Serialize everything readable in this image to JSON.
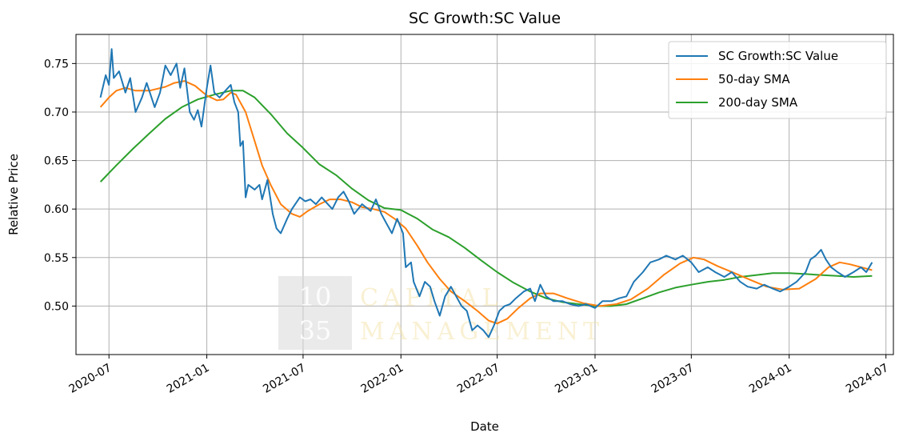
{
  "chart_data": {
    "type": "line",
    "title": "SC Growth:SC Value",
    "xlabel": "Date",
    "ylabel": "Relative Price",
    "xlim": [
      "2020-04-30",
      "2024-07-15"
    ],
    "ylim": [
      0.45,
      0.78
    ],
    "x_ticks": [
      "2020-07",
      "2021-01",
      "2021-07",
      "2022-01",
      "2022-07",
      "2023-01",
      "2023-07",
      "2024-01",
      "2024-07"
    ],
    "y_ticks": [
      0.5,
      0.55,
      0.6,
      0.65,
      0.7,
      0.75
    ],
    "grid": true,
    "legend_position": "top-right",
    "watermark": {
      "logo_top": "10",
      "logo_bottom": "35",
      "line1": "CAPITAL",
      "line2": "MANAGEMENT"
    },
    "series": [
      {
        "name": "SC Growth:SC Value",
        "color": "#1f77b4",
        "points": [
          [
            "2020-06-15",
            0.715
          ],
          [
            "2020-06-25",
            0.738
          ],
          [
            "2020-07-01",
            0.728
          ],
          [
            "2020-07-06",
            0.765
          ],
          [
            "2020-07-10",
            0.735
          ],
          [
            "2020-07-20",
            0.742
          ],
          [
            "2020-08-01",
            0.72
          ],
          [
            "2020-08-10",
            0.735
          ],
          [
            "2020-08-20",
            0.7
          ],
          [
            "2020-09-01",
            0.715
          ],
          [
            "2020-09-10",
            0.73
          ],
          [
            "2020-09-25",
            0.705
          ],
          [
            "2020-10-05",
            0.72
          ],
          [
            "2020-10-15",
            0.748
          ],
          [
            "2020-10-25",
            0.738
          ],
          [
            "2020-11-05",
            0.75
          ],
          [
            "2020-11-12",
            0.725
          ],
          [
            "2020-11-20",
            0.745
          ],
          [
            "2020-11-30",
            0.7
          ],
          [
            "2020-12-08",
            0.692
          ],
          [
            "2020-12-15",
            0.702
          ],
          [
            "2020-12-22",
            0.685
          ],
          [
            "2021-01-01",
            0.725
          ],
          [
            "2021-01-08",
            0.748
          ],
          [
            "2021-01-15",
            0.72
          ],
          [
            "2021-01-25",
            0.715
          ],
          [
            "2021-02-05",
            0.722
          ],
          [
            "2021-02-15",
            0.728
          ],
          [
            "2021-02-22",
            0.71
          ],
          [
            "2021-03-01",
            0.7
          ],
          [
            "2021-03-05",
            0.665
          ],
          [
            "2021-03-10",
            0.67
          ],
          [
            "2021-03-15",
            0.612
          ],
          [
            "2021-03-20",
            0.625
          ],
          [
            "2021-04-01",
            0.62
          ],
          [
            "2021-04-10",
            0.625
          ],
          [
            "2021-04-15",
            0.61
          ],
          [
            "2021-04-25",
            0.63
          ],
          [
            "2021-05-05",
            0.595
          ],
          [
            "2021-05-12",
            0.58
          ],
          [
            "2021-05-20",
            0.575
          ],
          [
            "2021-06-01",
            0.59
          ],
          [
            "2021-06-10",
            0.6
          ],
          [
            "2021-06-25",
            0.612
          ],
          [
            "2021-07-05",
            0.608
          ],
          [
            "2021-07-15",
            0.61
          ],
          [
            "2021-07-25",
            0.605
          ],
          [
            "2021-08-05",
            0.612
          ],
          [
            "2021-08-15",
            0.606
          ],
          [
            "2021-08-25",
            0.6
          ],
          [
            "2021-09-05",
            0.612
          ],
          [
            "2021-09-15",
            0.618
          ],
          [
            "2021-09-25",
            0.608
          ],
          [
            "2021-10-05",
            0.595
          ],
          [
            "2021-10-20",
            0.605
          ],
          [
            "2021-11-05",
            0.598
          ],
          [
            "2021-11-15",
            0.61
          ],
          [
            "2021-11-25",
            0.595
          ],
          [
            "2021-12-05",
            0.585
          ],
          [
            "2021-12-15",
            0.575
          ],
          [
            "2021-12-25",
            0.59
          ],
          [
            "2022-01-05",
            0.575
          ],
          [
            "2022-01-10",
            0.54
          ],
          [
            "2022-01-20",
            0.545
          ],
          [
            "2022-01-25",
            0.525
          ],
          [
            "2022-02-05",
            0.51
          ],
          [
            "2022-02-15",
            0.525
          ],
          [
            "2022-02-25",
            0.52
          ],
          [
            "2022-03-05",
            0.505
          ],
          [
            "2022-03-15",
            0.49
          ],
          [
            "2022-03-25",
            0.51
          ],
          [
            "2022-04-05",
            0.52
          ],
          [
            "2022-04-15",
            0.51
          ],
          [
            "2022-04-25",
            0.5
          ],
          [
            "2022-05-05",
            0.495
          ],
          [
            "2022-05-15",
            0.475
          ],
          [
            "2022-05-25",
            0.48
          ],
          [
            "2022-06-05",
            0.475
          ],
          [
            "2022-06-15",
            0.468
          ],
          [
            "2022-06-25",
            0.48
          ],
          [
            "2022-07-05",
            0.495
          ],
          [
            "2022-07-15",
            0.5
          ],
          [
            "2022-07-25",
            0.502
          ],
          [
            "2022-08-05",
            0.508
          ],
          [
            "2022-08-20",
            0.515
          ],
          [
            "2022-09-01",
            0.518
          ],
          [
            "2022-09-10",
            0.505
          ],
          [
            "2022-09-20",
            0.522
          ],
          [
            "2022-10-01",
            0.51
          ],
          [
            "2022-10-15",
            0.505
          ],
          [
            "2022-11-01",
            0.505
          ],
          [
            "2022-11-15",
            0.502
          ],
          [
            "2022-12-01",
            0.5
          ],
          [
            "2022-12-15",
            0.502
          ],
          [
            "2023-01-01",
            0.498
          ],
          [
            "2023-01-15",
            0.505
          ],
          [
            "2023-02-01",
            0.505
          ],
          [
            "2023-02-15",
            0.508
          ],
          [
            "2023-03-01",
            0.51
          ],
          [
            "2023-03-15",
            0.525
          ],
          [
            "2023-04-01",
            0.535
          ],
          [
            "2023-04-15",
            0.545
          ],
          [
            "2023-05-01",
            0.548
          ],
          [
            "2023-05-15",
            0.552
          ],
          [
            "2023-06-01",
            0.548
          ],
          [
            "2023-06-15",
            0.552
          ],
          [
            "2023-07-01",
            0.545
          ],
          [
            "2023-07-15",
            0.535
          ],
          [
            "2023-08-01",
            0.54
          ],
          [
            "2023-08-15",
            0.535
          ],
          [
            "2023-09-01",
            0.53
          ],
          [
            "2023-09-15",
            0.535
          ],
          [
            "2023-10-01",
            0.525
          ],
          [
            "2023-10-15",
            0.52
          ],
          [
            "2023-11-01",
            0.518
          ],
          [
            "2023-11-15",
            0.522
          ],
          [
            "2023-12-01",
            0.518
          ],
          [
            "2023-12-15",
            0.515
          ],
          [
            "2024-01-01",
            0.52
          ],
          [
            "2024-01-15",
            0.525
          ],
          [
            "2024-02-01",
            0.535
          ],
          [
            "2024-02-10",
            0.548
          ],
          [
            "2024-02-20",
            0.552
          ],
          [
            "2024-03-01",
            0.558
          ],
          [
            "2024-03-10",
            0.548
          ],
          [
            "2024-03-20",
            0.54
          ],
          [
            "2024-04-01",
            0.535
          ],
          [
            "2024-04-15",
            0.53
          ],
          [
            "2024-05-01",
            0.535
          ],
          [
            "2024-05-15",
            0.54
          ],
          [
            "2024-05-25",
            0.535
          ],
          [
            "2024-06-05",
            0.545
          ]
        ]
      },
      {
        "name": "50-day SMA",
        "color": "#ff7f0e",
        "points": [
          [
            "2020-06-15",
            0.705
          ],
          [
            "2020-07-01",
            0.715
          ],
          [
            "2020-07-15",
            0.722
          ],
          [
            "2020-08-01",
            0.725
          ],
          [
            "2020-08-20",
            0.722
          ],
          [
            "2020-09-15",
            0.722
          ],
          [
            "2020-10-15",
            0.726
          ],
          [
            "2020-11-01",
            0.73
          ],
          [
            "2020-11-20",
            0.732
          ],
          [
            "2020-12-10",
            0.727
          ],
          [
            "2021-01-01",
            0.717
          ],
          [
            "2021-01-20",
            0.712
          ],
          [
            "2021-02-01",
            0.713
          ],
          [
            "2021-02-15",
            0.72
          ],
          [
            "2021-02-25",
            0.718
          ],
          [
            "2021-03-15",
            0.7
          ],
          [
            "2021-04-01",
            0.67
          ],
          [
            "2021-04-15",
            0.645
          ],
          [
            "2021-05-01",
            0.625
          ],
          [
            "2021-05-20",
            0.605
          ],
          [
            "2021-06-10",
            0.595
          ],
          [
            "2021-06-25",
            0.592
          ],
          [
            "2021-07-10",
            0.598
          ],
          [
            "2021-08-01",
            0.605
          ],
          [
            "2021-08-20",
            0.61
          ],
          [
            "2021-09-10",
            0.61
          ],
          [
            "2021-10-01",
            0.607
          ],
          [
            "2021-10-20",
            0.602
          ],
          [
            "2021-11-10",
            0.6
          ],
          [
            "2021-12-01",
            0.597
          ],
          [
            "2021-12-20",
            0.59
          ],
          [
            "2022-01-10",
            0.58
          ],
          [
            "2022-02-01",
            0.562
          ],
          [
            "2022-02-20",
            0.545
          ],
          [
            "2022-03-15",
            0.528
          ],
          [
            "2022-04-05",
            0.515
          ],
          [
            "2022-05-01",
            0.505
          ],
          [
            "2022-05-25",
            0.495
          ],
          [
            "2022-06-15",
            0.485
          ],
          [
            "2022-07-01",
            0.482
          ],
          [
            "2022-07-20",
            0.487
          ],
          [
            "2022-08-10",
            0.498
          ],
          [
            "2022-09-01",
            0.508
          ],
          [
            "2022-09-20",
            0.513
          ],
          [
            "2022-10-15",
            0.513
          ],
          [
            "2022-11-10",
            0.508
          ],
          [
            "2022-12-10",
            0.503
          ],
          [
            "2023-01-10",
            0.5
          ],
          [
            "2023-02-10",
            0.502
          ],
          [
            "2023-03-10",
            0.507
          ],
          [
            "2023-04-10",
            0.518
          ],
          [
            "2023-05-10",
            0.532
          ],
          [
            "2023-06-10",
            0.544
          ],
          [
            "2023-07-05",
            0.55
          ],
          [
            "2023-07-25",
            0.548
          ],
          [
            "2023-08-20",
            0.541
          ],
          [
            "2023-09-20",
            0.534
          ],
          [
            "2023-10-20",
            0.527
          ],
          [
            "2023-11-20",
            0.52
          ],
          [
            "2023-12-20",
            0.517
          ],
          [
            "2024-01-20",
            0.518
          ],
          [
            "2024-02-20",
            0.528
          ],
          [
            "2024-03-15",
            0.54
          ],
          [
            "2024-04-05",
            0.545
          ],
          [
            "2024-04-25",
            0.543
          ],
          [
            "2024-05-15",
            0.54
          ],
          [
            "2024-06-05",
            0.537
          ]
        ]
      },
      {
        "name": "200-day SMA",
        "color": "#2ca02c",
        "points": [
          [
            "2020-06-15",
            0.628
          ],
          [
            "2020-07-15",
            0.645
          ],
          [
            "2020-08-15",
            0.662
          ],
          [
            "2020-09-15",
            0.678
          ],
          [
            "2020-10-15",
            0.693
          ],
          [
            "2020-11-15",
            0.705
          ],
          [
            "2020-12-15",
            0.713
          ],
          [
            "2021-01-15",
            0.718
          ],
          [
            "2021-02-15",
            0.722
          ],
          [
            "2021-03-10",
            0.722
          ],
          [
            "2021-04-01",
            0.715
          ],
          [
            "2021-05-01",
            0.698
          ],
          [
            "2021-06-01",
            0.678
          ],
          [
            "2021-07-01",
            0.663
          ],
          [
            "2021-08-01",
            0.646
          ],
          [
            "2021-09-01",
            0.635
          ],
          [
            "2021-10-01",
            0.621
          ],
          [
            "2021-11-01",
            0.609
          ],
          [
            "2021-12-01",
            0.601
          ],
          [
            "2022-01-01",
            0.599
          ],
          [
            "2022-02-01",
            0.59
          ],
          [
            "2022-03-01",
            0.579
          ],
          [
            "2022-04-01",
            0.571
          ],
          [
            "2022-05-01",
            0.56
          ],
          [
            "2022-06-01",
            0.547
          ],
          [
            "2022-07-01",
            0.535
          ],
          [
            "2022-08-01",
            0.524
          ],
          [
            "2022-09-01",
            0.515
          ],
          [
            "2022-10-01",
            0.508
          ],
          [
            "2022-11-01",
            0.504
          ],
          [
            "2022-12-01",
            0.502
          ],
          [
            "2023-01-01",
            0.5
          ],
          [
            "2023-02-01",
            0.5
          ],
          [
            "2023-03-01",
            0.502
          ],
          [
            "2023-04-01",
            0.508
          ],
          [
            "2023-05-01",
            0.514
          ],
          [
            "2023-06-01",
            0.519
          ],
          [
            "2023-07-01",
            0.522
          ],
          [
            "2023-08-01",
            0.525
          ],
          [
            "2023-09-01",
            0.527
          ],
          [
            "2023-10-01",
            0.53
          ],
          [
            "2023-11-01",
            0.532
          ],
          [
            "2023-12-01",
            0.534
          ],
          [
            "2024-01-01",
            0.534
          ],
          [
            "2024-02-01",
            0.533
          ],
          [
            "2024-03-01",
            0.532
          ],
          [
            "2024-04-01",
            0.531
          ],
          [
            "2024-05-01",
            0.53
          ],
          [
            "2024-06-05",
            0.531
          ]
        ]
      }
    ]
  }
}
